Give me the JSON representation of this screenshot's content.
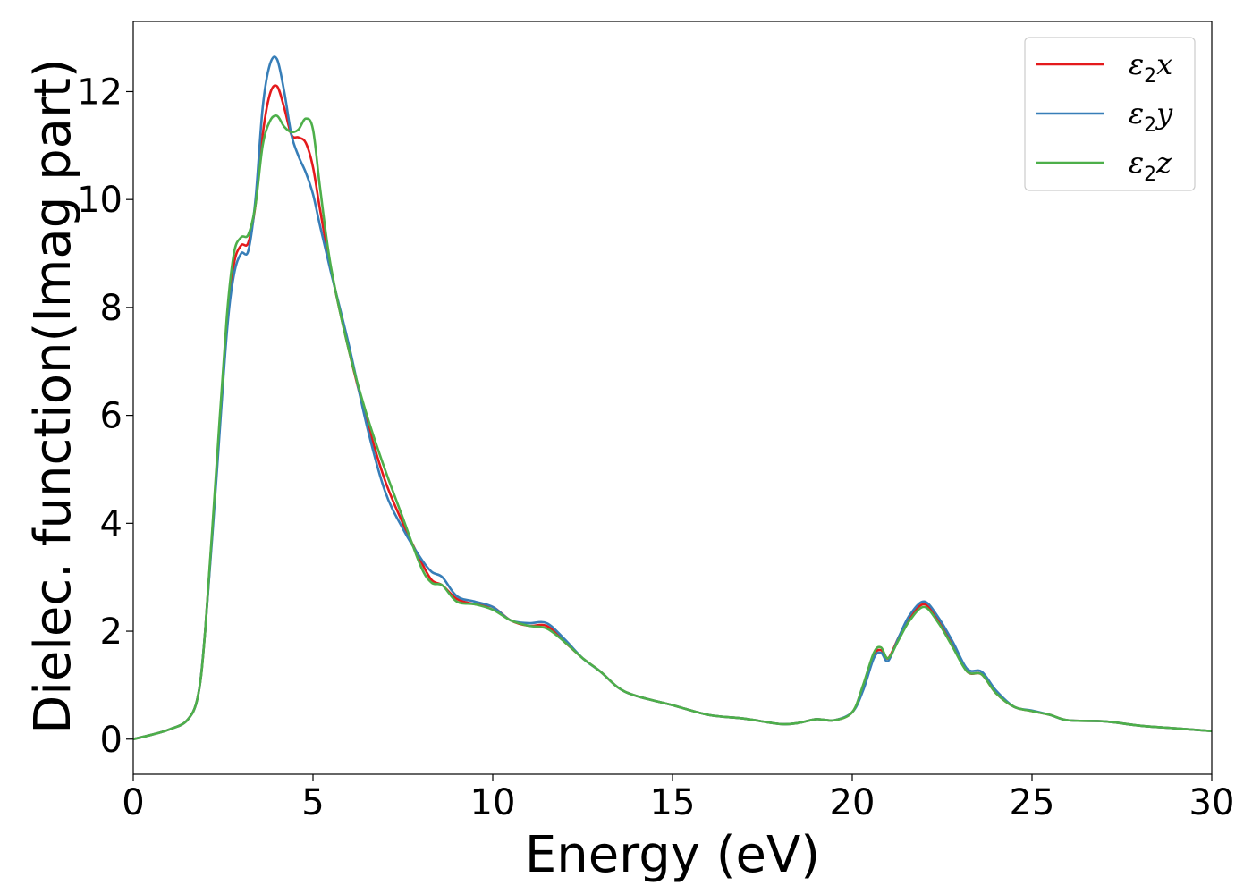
{
  "chart_data": {
    "type": "line",
    "title": "",
    "xlabel": "Energy (eV)",
    "ylabel": "Dielec. function(Imag part)",
    "xlim": [
      0,
      30
    ],
    "ylim": [
      -0.65,
      13.3
    ],
    "xticks": [
      0,
      5,
      10,
      15,
      20,
      25,
      30
    ],
    "yticks": [
      0,
      2,
      4,
      6,
      8,
      10,
      12
    ],
    "grid": false,
    "legend_position": "upper right",
    "series": [
      {
        "name": "ε2x",
        "name_parts": [
          "ε",
          "2",
          "x"
        ],
        "color": "#e41a1c",
        "x": [
          0,
          0.5,
          1.0,
          1.5,
          1.8,
          2.0,
          2.3,
          2.6,
          2.8,
          3.0,
          3.2,
          3.4,
          3.6,
          3.8,
          4.0,
          4.2,
          4.4,
          4.6,
          4.8,
          5.0,
          5.2,
          5.5,
          6.0,
          6.5,
          7.0,
          7.5,
          8.0,
          8.3,
          8.6,
          9.0,
          9.5,
          10.0,
          10.5,
          11.0,
          11.5,
          12.0,
          12.5,
          13.0,
          13.5,
          14.0,
          15.0,
          16.0,
          17.0,
          18.0,
          18.5,
          19.0,
          19.5,
          20.0,
          20.3,
          20.6,
          20.8,
          21.0,
          21.3,
          21.6,
          22.0,
          22.4,
          22.8,
          23.2,
          23.6,
          24.0,
          24.5,
          25.0,
          25.5,
          26.0,
          27.0,
          28.0,
          29.0,
          30.0
        ],
        "values": [
          0.0,
          0.08,
          0.18,
          0.35,
          0.8,
          2.0,
          4.8,
          7.6,
          8.8,
          9.15,
          9.2,
          9.9,
          11.2,
          11.95,
          12.1,
          11.7,
          11.2,
          11.15,
          11.05,
          10.6,
          9.8,
          8.7,
          7.2,
          5.9,
          4.8,
          4.0,
          3.3,
          2.95,
          2.85,
          2.6,
          2.5,
          2.45,
          2.2,
          2.1,
          2.1,
          1.8,
          1.5,
          1.25,
          0.95,
          0.8,
          0.63,
          0.45,
          0.38,
          0.28,
          0.3,
          0.37,
          0.35,
          0.5,
          0.95,
          1.55,
          1.65,
          1.5,
          1.9,
          2.25,
          2.5,
          2.2,
          1.75,
          1.25,
          1.2,
          0.85,
          0.6,
          0.52,
          0.45,
          0.35,
          0.33,
          0.25,
          0.2,
          0.15
        ]
      },
      {
        "name": "ε2y",
        "name_parts": [
          "ε",
          "2",
          "y"
        ],
        "color": "#377eb8",
        "x": [
          0,
          0.5,
          1.0,
          1.5,
          1.8,
          2.0,
          2.3,
          2.6,
          2.8,
          3.0,
          3.2,
          3.4,
          3.6,
          3.8,
          4.0,
          4.2,
          4.4,
          4.6,
          4.8,
          5.0,
          5.2,
          5.5,
          6.0,
          6.5,
          7.0,
          7.5,
          8.0,
          8.3,
          8.6,
          9.0,
          9.5,
          10.0,
          10.5,
          11.0,
          11.5,
          12.0,
          12.5,
          13.0,
          13.5,
          14.0,
          15.0,
          16.0,
          17.0,
          18.0,
          18.5,
          19.0,
          19.5,
          20.0,
          20.3,
          20.6,
          20.8,
          21.0,
          21.3,
          21.6,
          22.0,
          22.4,
          22.8,
          23.2,
          23.6,
          24.0,
          24.5,
          25.0,
          25.5,
          26.0,
          27.0,
          28.0,
          29.0,
          30.0
        ],
        "values": [
          0.0,
          0.08,
          0.18,
          0.35,
          0.8,
          2.0,
          4.7,
          7.5,
          8.6,
          9.0,
          9.05,
          10.0,
          11.7,
          12.5,
          12.6,
          12.0,
          11.2,
          10.8,
          10.5,
          10.1,
          9.5,
          8.65,
          7.3,
          5.8,
          4.6,
          3.9,
          3.35,
          3.1,
          3.0,
          2.65,
          2.55,
          2.45,
          2.2,
          2.15,
          2.15,
          1.85,
          1.5,
          1.25,
          0.95,
          0.8,
          0.63,
          0.45,
          0.38,
          0.28,
          0.3,
          0.37,
          0.35,
          0.5,
          0.9,
          1.5,
          1.6,
          1.45,
          1.9,
          2.3,
          2.55,
          2.25,
          1.8,
          1.3,
          1.25,
          0.9,
          0.6,
          0.53,
          0.45,
          0.35,
          0.33,
          0.25,
          0.2,
          0.15
        ]
      },
      {
        "name": "ε2z",
        "name_parts": [
          "ε",
          "2",
          "z"
        ],
        "color": "#4daf4a",
        "x": [
          0,
          0.5,
          1.0,
          1.5,
          1.8,
          2.0,
          2.3,
          2.6,
          2.8,
          3.0,
          3.2,
          3.4,
          3.6,
          3.8,
          4.0,
          4.2,
          4.4,
          4.6,
          4.8,
          5.0,
          5.2,
          5.5,
          6.0,
          6.5,
          7.0,
          7.5,
          8.0,
          8.3,
          8.6,
          9.0,
          9.5,
          10.0,
          10.5,
          11.0,
          11.5,
          12.0,
          12.5,
          13.0,
          13.5,
          14.0,
          15.0,
          16.0,
          17.0,
          18.0,
          18.5,
          19.0,
          19.5,
          20.0,
          20.3,
          20.6,
          20.8,
          21.0,
          21.3,
          21.6,
          22.0,
          22.4,
          22.8,
          23.2,
          23.6,
          24.0,
          24.5,
          25.0,
          25.5,
          26.0,
          27.0,
          28.0,
          29.0,
          30.0
        ],
        "values": [
          0.0,
          0.08,
          0.18,
          0.35,
          0.8,
          2.0,
          4.9,
          7.8,
          9.0,
          9.3,
          9.35,
          9.9,
          11.0,
          11.45,
          11.55,
          11.35,
          11.25,
          11.3,
          11.5,
          11.3,
          10.2,
          8.75,
          7.2,
          6.0,
          5.0,
          4.1,
          3.2,
          2.9,
          2.85,
          2.55,
          2.5,
          2.4,
          2.2,
          2.1,
          2.05,
          1.8,
          1.5,
          1.25,
          0.95,
          0.8,
          0.63,
          0.45,
          0.38,
          0.28,
          0.3,
          0.37,
          0.35,
          0.5,
          1.0,
          1.6,
          1.7,
          1.5,
          1.85,
          2.2,
          2.45,
          2.15,
          1.7,
          1.25,
          1.2,
          0.85,
          0.6,
          0.52,
          0.45,
          0.35,
          0.33,
          0.25,
          0.2,
          0.15
        ]
      }
    ]
  }
}
